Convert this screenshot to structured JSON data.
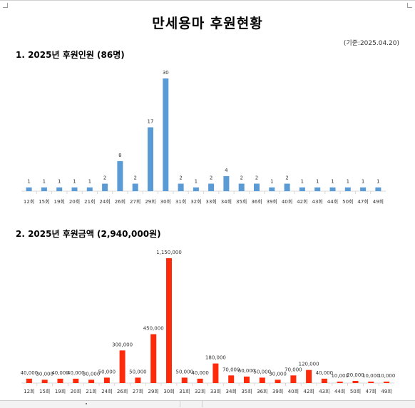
{
  "document": {
    "title": "만세용마 후원현황",
    "basis_date": "(기준:2025.04.20)"
  },
  "sections": [
    {
      "heading": "1. 2025년 후원인원 (86명)"
    },
    {
      "heading": "2. 2025년 후원금액 (2,940,000원)"
    }
  ],
  "chart_data": [
    {
      "type": "bar",
      "title": "",
      "categories": [
        "12회",
        "15회",
        "19회",
        "20회",
        "21회",
        "24회",
        "26회",
        "27회",
        "29회",
        "30회",
        "31회",
        "32회",
        "33회",
        "34회",
        "35회",
        "36회",
        "39회",
        "40회",
        "42회",
        "43회",
        "44회",
        "50회",
        "47회",
        "49회"
      ],
      "values": [
        1,
        1,
        1,
        1,
        1,
        2,
        8,
        2,
        17,
        30,
        2,
        1,
        2,
        4,
        2,
        2,
        1,
        2,
        1,
        1,
        1,
        1,
        1,
        1
      ],
      "value_labels": [
        "1",
        "1",
        "1",
        "1",
        "1",
        "2",
        "8",
        "2",
        "17",
        "30",
        "2",
        "1",
        "2",
        "4",
        "2",
        "2",
        "1",
        "2",
        "1",
        "1",
        "1",
        "1",
        "1",
        "1"
      ],
      "ylim": [
        0,
        30
      ],
      "grid": false,
      "color": "#5b9bd5"
    },
    {
      "type": "bar",
      "title": "",
      "categories": [
        "12회",
        "15회",
        "19회",
        "20회",
        "21회",
        "24회",
        "26회",
        "27회",
        "29회",
        "30회",
        "31회",
        "32회",
        "33회",
        "34회",
        "35회",
        "36회",
        "39회",
        "40회",
        "42회",
        "43회",
        "44회",
        "50회",
        "47회",
        "49회"
      ],
      "values": [
        40000,
        30000,
        40000,
        40000,
        30000,
        50000,
        300000,
        50000,
        450000,
        1150000,
        50000,
        40000,
        180000,
        70000,
        60000,
        50000,
        30000,
        70000,
        120000,
        40000,
        10000,
        20000,
        10000,
        10000
      ],
      "value_labels": [
        "40,000",
        "30,000",
        "40,000",
        "40,000",
        "30,000",
        "50,000",
        "300,000",
        "50,000",
        "450,000",
        "1,150,000",
        "50,000",
        "40,000",
        "180,000",
        "70,000",
        "60,000",
        "50,000",
        "30,000",
        "70,000",
        "120,000",
        "40,000",
        "10,000",
        "20,000",
        "10,000",
        "10,000"
      ],
      "ylim": [
        0,
        1150000
      ],
      "grid": false,
      "color": "#ff2a0a"
    }
  ]
}
